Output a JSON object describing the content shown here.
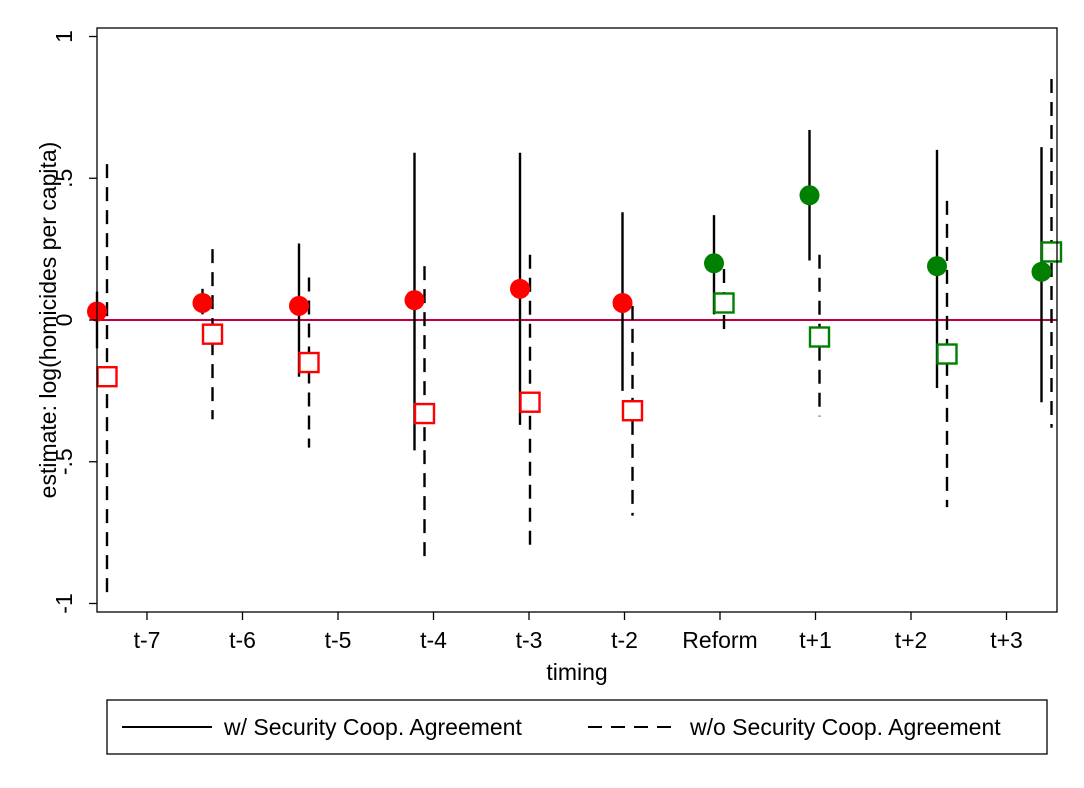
{
  "chart_data": {
    "type": "scatter",
    "title": "",
    "xlabel": "timing",
    "ylabel": "estimate: log(homicides per capita)",
    "categories": [
      "t-7",
      "t-6",
      "t-5",
      "t-4",
      "t-3",
      "t-2",
      "Reform",
      "t+1",
      "t+2",
      "t+3"
    ],
    "yticks": [
      1,
      0.5,
      0,
      -0.5,
      -1
    ],
    "ytick_labels": [
      "1",
      ".5",
      "0",
      "-.5",
      "-1"
    ],
    "ylim": [
      -1.03,
      1.03
    ],
    "reference_line": 0,
    "grid": false,
    "legend_position": "bottom",
    "legend": {
      "solid_label": "w/ Security Coop. Agreement",
      "dashed_label": "w/o Security Coop. Agreement"
    },
    "colors": {
      "pre": "#ff0000",
      "post": "#008000",
      "reference": "#c0003c",
      "ci": "#000000"
    },
    "series": [
      {
        "name": "w/ Security Coop. Agreement",
        "marker": "filled-circle",
        "line": "solid",
        "points": [
          {
            "category": "t-7",
            "estimate": 0.03,
            "ci": [
              -0.1,
              0.1
            ]
          },
          {
            "category": "t-6",
            "estimate": 0.06,
            "ci": [
              0.02,
              0.11
            ]
          },
          {
            "category": "t-5",
            "estimate": 0.05,
            "ci": [
              -0.2,
              0.27
            ]
          },
          {
            "category": "t-4",
            "estimate": 0.07,
            "ci": [
              -0.46,
              0.59
            ]
          },
          {
            "category": "t-3",
            "estimate": 0.11,
            "ci": [
              -0.37,
              0.59
            ]
          },
          {
            "category": "t-2",
            "estimate": 0.06,
            "ci": [
              -0.25,
              0.38
            ]
          },
          {
            "category": "Reform",
            "estimate": 0.2,
            "ci": [
              0.02,
              0.37
            ]
          },
          {
            "category": "t+1",
            "estimate": 0.44,
            "ci": [
              0.21,
              0.67
            ]
          },
          {
            "category": "t+2",
            "estimate": 0.19,
            "ci": [
              -0.24,
              0.6
            ]
          },
          {
            "category": "t+3",
            "estimate": 0.17,
            "ci": [
              -0.29,
              0.61
            ]
          }
        ]
      },
      {
        "name": "w/o Security Coop. Agreement",
        "marker": "hollow-square",
        "line": "dashed",
        "points": [
          {
            "category": "t-7",
            "estimate": -0.2,
            "ci": [
              -0.97,
              0.55
            ]
          },
          {
            "category": "t-6",
            "estimate": -0.05,
            "ci": [
              -0.35,
              0.25
            ]
          },
          {
            "category": "t-5",
            "estimate": -0.15,
            "ci": [
              -0.45,
              0.15
            ]
          },
          {
            "category": "t-4",
            "estimate": -0.33,
            "ci": [
              -0.84,
              0.19
            ]
          },
          {
            "category": "t-3",
            "estimate": -0.29,
            "ci": [
              -0.81,
              0.23
            ]
          },
          {
            "category": "t-2",
            "estimate": -0.32,
            "ci": [
              -0.69,
              0.05
            ]
          },
          {
            "category": "Reform",
            "estimate": 0.06,
            "ci": [
              -0.06,
              0.18
            ]
          },
          {
            "category": "t+1",
            "estimate": -0.06,
            "ci": [
              -0.34,
              0.23
            ]
          },
          {
            "category": "t+2",
            "estimate": -0.12,
            "ci": [
              -0.66,
              0.42
            ]
          },
          {
            "category": "t+3",
            "estimate": 0.24,
            "ci": [
              -0.38,
              0.85
            ]
          }
        ]
      }
    ],
    "post_period_starts_at": "Reform"
  }
}
